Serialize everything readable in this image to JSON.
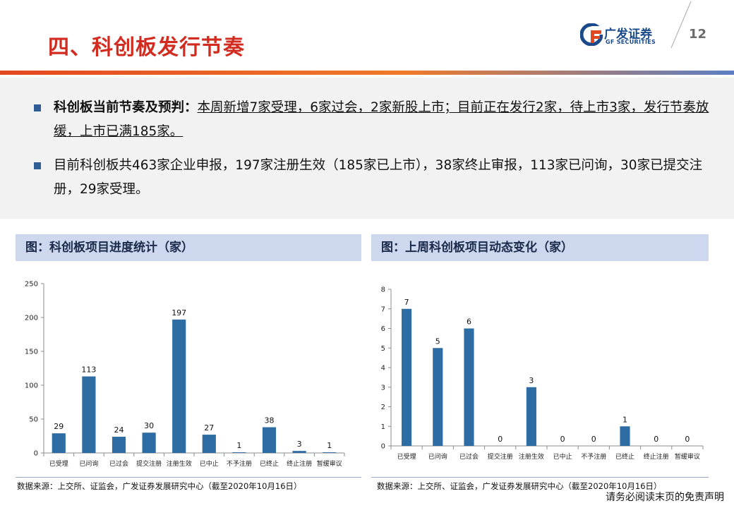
{
  "header": {
    "title": "四、科创板发行节奏",
    "logo_cn": "广发证券",
    "logo_en": "GF SECURITIES",
    "page_number": "12"
  },
  "bullets": {
    "b1_lead": "科创板当前节奏及预判：",
    "b1_body": "本周新增7家受理，6家过会，2家新股上市；目前正在发行2家，待上市3家，发行节奏放缓，上市已满185家。",
    "b2": "目前科创板共463家企业申报，197家注册生效（185家已上市），38家终止审报，113家已问询，30家已提交注册，29家受理。"
  },
  "panels": {
    "left_title": "图：科创板项目进度统计（家）",
    "right_title": "图：上周科创板项目动态变化（家）",
    "left_source": "数据来源：上交所、证监会，广发证券发展研究中心（截至2020年10月16日）",
    "right_source": "数据来源：上交所、证监会，广发证券发展研究中心（截至2020年10月16日）"
  },
  "footer": {
    "disclaimer": "请务必阅读末页的免责声明"
  },
  "colors": {
    "bar": "#2e6da4",
    "title_red": "#d22b1f",
    "panel_head": "#cdd8ee"
  },
  "chart_data": [
    {
      "type": "bar",
      "title": "图：科创板项目进度统计（家）",
      "categories": [
        "已受理",
        "已问询",
        "已过会",
        "提交注册",
        "注册生效",
        "已中止",
        "不予注册",
        "已终止",
        "终止注册",
        "暂缓审议"
      ],
      "values": [
        29,
        113,
        24,
        30,
        197,
        27,
        1,
        38,
        3,
        1
      ],
      "yticks": [
        0,
        50,
        100,
        150,
        200,
        250
      ],
      "ylim": [
        0,
        250
      ],
      "grid": false
    },
    {
      "type": "bar",
      "title": "图：上周科创板项目动态变化（家）",
      "categories": [
        "已受理",
        "已问询",
        "已过会",
        "提交注册",
        "注册生效",
        "已中止",
        "不予注册",
        "已终止",
        "终止注册",
        "暂缓审议"
      ],
      "values": [
        7,
        5,
        6,
        0,
        3,
        0,
        0,
        1,
        0,
        0
      ],
      "yticks": [
        0,
        1,
        2,
        3,
        4,
        5,
        6,
        7,
        8
      ],
      "ylim": [
        0,
        8
      ],
      "grid": false
    }
  ]
}
